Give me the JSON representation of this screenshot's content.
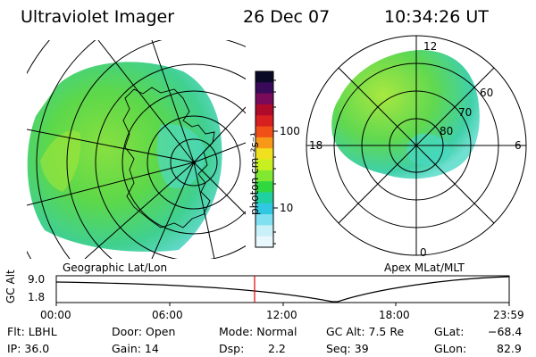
{
  "header": {
    "instrument": "Ultraviolet Imager",
    "date": "26 Dec 07",
    "time": "10:34:26 UT"
  },
  "left_panel": {
    "label": "Geographic Lat/Lon"
  },
  "right_panel": {
    "label": "Apex MLat/MLT",
    "mlt_labels": [
      "12",
      "18",
      "6",
      "0"
    ],
    "lat_labels": [
      "60",
      "70",
      "80"
    ]
  },
  "colorbar": {
    "unit": "photon cm⁻²s⁻¹",
    "ticks": [
      "100",
      "10"
    ],
    "colors": [
      "#0a0a28",
      "#3a0a5a",
      "#7a0a5a",
      "#b00a2a",
      "#d82020",
      "#f05018",
      "#f89818",
      "#f0e020",
      "#c8f020",
      "#80e830",
      "#30d840",
      "#20d0a0",
      "#30c8e0",
      "#80e0f0",
      "#c8f0f8",
      "#e8f8fc"
    ]
  },
  "altitude_plot": {
    "axis_label": "GC Alt",
    "y_ticks": [
      "9.0",
      "1.8"
    ],
    "x_ticks": [
      "00:00",
      "06:00",
      "12:00",
      "18:00",
      "23:59"
    ],
    "current_time_color": "#e00000"
  },
  "info": {
    "flt": "Flt: LBHL",
    "ip": "IP: 36.0",
    "door": "Door: Open",
    "gain": "Gain: 14",
    "mode": "Mode: Normal",
    "dsp_label": "Dsp:",
    "dsp_value": "2.2",
    "gc_alt": "GC Alt: 7.5 Re",
    "seq": "Seq: 39",
    "glat_label": "GLat:",
    "glat_value": "−68.4",
    "glon_label": "GLon:",
    "glon_value": "82.9"
  }
}
